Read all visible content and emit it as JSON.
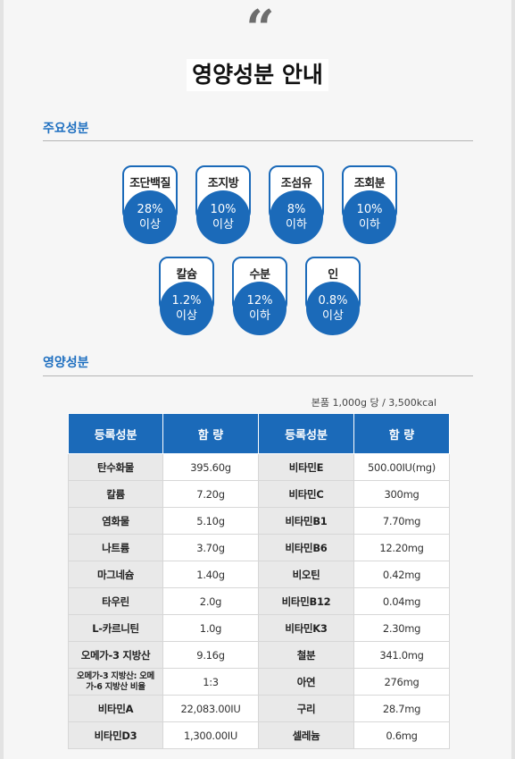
{
  "quote_mark": "“",
  "page_title": "영양성분 안내",
  "sections": {
    "main": "주요성분",
    "nutrition": "영양성분"
  },
  "main_components": [
    {
      "name": "조단백질",
      "value": "28%",
      "qualifier": "이상"
    },
    {
      "name": "조지방",
      "value": "10%",
      "qualifier": "이상"
    },
    {
      "name": "조섬유",
      "value": "8%",
      "qualifier": "이하"
    },
    {
      "name": "조회분",
      "value": "10%",
      "qualifier": "이하"
    },
    {
      "name": "칼슘",
      "value": "1.2%",
      "qualifier": "이상"
    },
    {
      "name": "수분",
      "value": "12%",
      "qualifier": "이하"
    },
    {
      "name": "인",
      "value": "0.8%",
      "qualifier": "이상"
    }
  ],
  "basis_note": "본품 1,000g 당 / 3,500kcal",
  "table": {
    "headers": [
      "등록성분",
      "함 량",
      "등록성분",
      "함 량"
    ],
    "rows": [
      [
        "탄수화물",
        "395.60g",
        "비타민E",
        "500.00IU(mg)"
      ],
      [
        "칼륨",
        "7.20g",
        "비타민C",
        "300mg"
      ],
      [
        "염화물",
        "5.10g",
        "비타민B1",
        "7.70mg"
      ],
      [
        "나트륨",
        "3.70g",
        "비타민B6",
        "12.20mg"
      ],
      [
        "마그네슘",
        "1.40g",
        "비오틴",
        "0.42mg"
      ],
      [
        "타우린",
        "2.0g",
        "비타민B12",
        "0.04mg"
      ],
      [
        "L-카르니틴",
        "1.0g",
        "비타민K3",
        "2.30mg"
      ],
      [
        "오메가-3 지방산",
        "9.16g",
        "철분",
        "341.0mg"
      ],
      [
        "오메가-3 지방산: 오메가-6 지방산 비율",
        "1:3",
        "아연",
        "276mg"
      ],
      [
        "비타민A",
        "22,083.00IU",
        "구리",
        "28.7mg"
      ],
      [
        "비타민D3",
        "1,300.00IU",
        "셀레늄",
        "0.6mg"
      ]
    ]
  },
  "colors": {
    "accent_blue": "#1b6ab9",
    "section_blue": "#1e6fc0"
  }
}
